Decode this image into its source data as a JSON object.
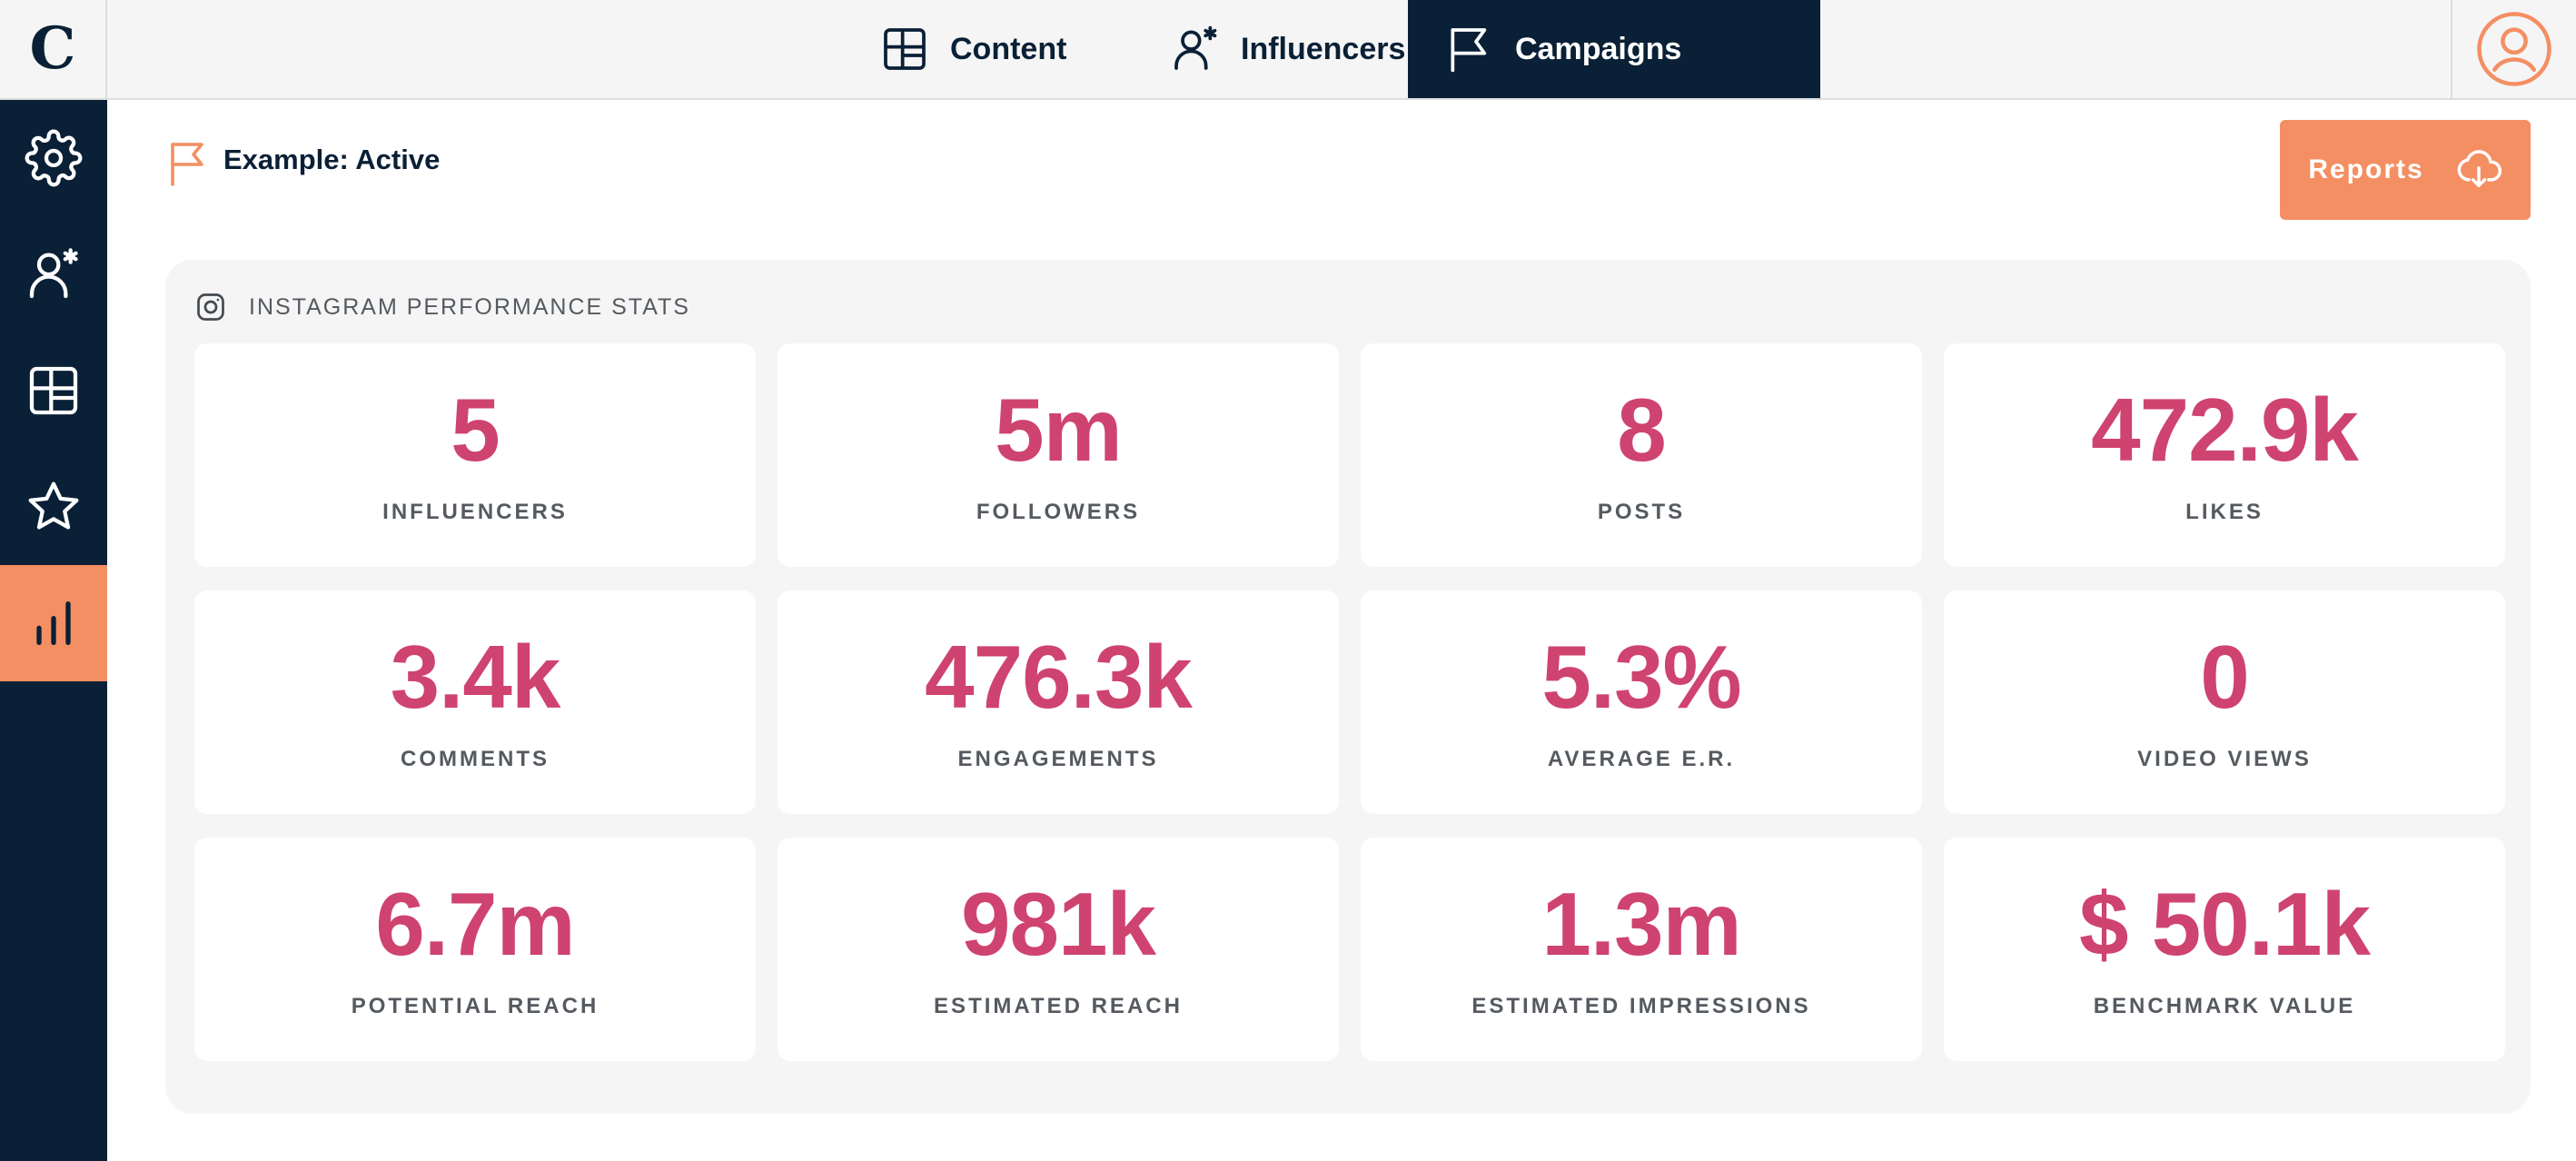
{
  "brand": {
    "logo_letter": "C"
  },
  "colors": {
    "navy": "#0a2036",
    "accent_orange": "#f48f63",
    "stat_pink": "#cf4370",
    "panel_gray": "#f5f5f5"
  },
  "sidebar": {
    "items": [
      {
        "icon": "gear-icon",
        "active": false
      },
      {
        "icon": "influencer-icon",
        "active": false
      },
      {
        "icon": "content-grid-icon",
        "active": false
      },
      {
        "icon": "star-icon",
        "active": false
      },
      {
        "icon": "bar-chart-icon",
        "active": true
      }
    ]
  },
  "topnav": {
    "tabs": [
      {
        "label": "Content",
        "icon": "content-grid-icon",
        "active": false
      },
      {
        "label": "Influencers",
        "icon": "influencer-icon",
        "active": false
      },
      {
        "label": "Campaigns",
        "icon": "flag-icon",
        "active": true
      }
    ],
    "profile_icon": "user-avatar-icon"
  },
  "page": {
    "title": "Example: Active",
    "reports_label": "Reports"
  },
  "stats": {
    "heading": "INSTAGRAM PERFORMANCE STATS",
    "cards": [
      {
        "value": "5",
        "label": "INFLUENCERS"
      },
      {
        "value": "5m",
        "label": "FOLLOWERS"
      },
      {
        "value": "8",
        "label": "POSTS"
      },
      {
        "value": "472.9k",
        "label": "LIKES"
      },
      {
        "value": "3.4k",
        "label": "COMMENTS"
      },
      {
        "value": "476.3k",
        "label": "ENGAGEMENTS"
      },
      {
        "value": "5.3%",
        "label": "AVERAGE E.R."
      },
      {
        "value": "0",
        "label": "VIDEO VIEWS"
      },
      {
        "value": "6.7m",
        "label": "POTENTIAL REACH"
      },
      {
        "value": "981k",
        "label": "ESTIMATED REACH"
      },
      {
        "value": "1.3m",
        "label": "ESTIMATED IMPRESSIONS"
      },
      {
        "value": "$ 50.1k",
        "label": "BENCHMARK VALUE"
      }
    ]
  }
}
